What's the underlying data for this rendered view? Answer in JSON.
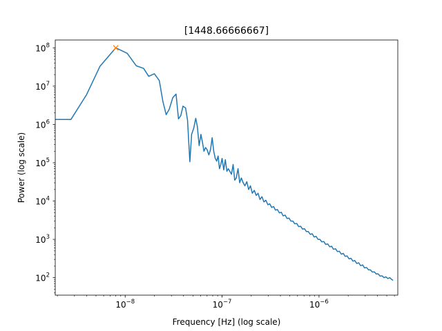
{
  "chart_data": {
    "type": "line",
    "title": "[1448.66666667]",
    "xlabel": "Frequency [Hz] (log scale)",
    "ylabel": "Power (log scale)",
    "xscale": "log",
    "yscale": "log",
    "xlim": [
      1.9e-09,
      6.5e-06
    ],
    "ylim": [
      35,
      160000000.0
    ],
    "x_tick_labels": [
      "10",
      "10",
      "10"
    ],
    "x_tick_exponents": [
      "−8",
      "−7",
      "−6"
    ],
    "x_ticks": [
      1e-08,
      1e-07,
      1e-06
    ],
    "y_tick_labels": [
      "10",
      "10",
      "10",
      "10",
      "10",
      "10",
      "10"
    ],
    "y_tick_exponents": [
      "2",
      "3",
      "4",
      "5",
      "6",
      "7",
      "8"
    ],
    "y_ticks": [
      100.0,
      1000.0,
      10000.0,
      100000.0,
      1000000.0,
      10000000.0,
      100000000.0
    ],
    "grid": false,
    "series": [
      {
        "color": "#1f77b4",
        "x": [
          1.9e-09,
          2.76e-09,
          4e-09,
          5.5e-09,
          8e-09,
          1.05e-08,
          1.3e-08,
          1.55e-08,
          1.75e-08,
          2e-08,
          2.25e-08,
          2.45e-08,
          2.65e-08,
          2.85e-08,
          3.1e-08,
          3.35e-08,
          3.55e-08,
          3.75e-08,
          3.95e-08,
          4.2e-08,
          4.4e-08,
          4.65e-08,
          4.85e-08,
          5.1e-08,
          5.35e-08,
          5.55e-08,
          5.8e-08,
          6.05e-08,
          6.3e-08,
          6.5e-08,
          6.75e-08,
          7e-08,
          7.3e-08,
          7.6e-08,
          7.9e-08,
          8.2e-08,
          8.5e-08,
          8.8e-08,
          9.1e-08,
          9.4e-08,
          9.7e-08,
          1e-07,
          1.04e-07,
          1.08e-07,
          1.12e-07,
          1.16e-07,
          1.2e-07,
          1.25e-07,
          1.3e-07,
          1.35e-07,
          1.4e-07,
          1.46e-07,
          1.52e-07,
          1.58e-07,
          1.65e-07,
          1.72e-07,
          1.8e-07,
          1.88e-07,
          1.96e-07,
          2.05e-07,
          2.15e-07,
          2.25e-07,
          2.35e-07,
          2.46e-07,
          2.58e-07,
          2.7e-07,
          2.83e-07,
          2.97e-07,
          3.1e-07,
          3.25e-07,
          3.4e-07,
          3.55e-07,
          3.72e-07,
          3.9e-07,
          4.08e-07,
          4.27e-07,
          4.47e-07,
          4.68e-07,
          4.9e-07,
          5.13e-07,
          5.37e-07,
          5.62e-07,
          5.89e-07,
          6.17e-07,
          6.46e-07,
          6.76e-07,
          7.08e-07,
          7.41e-07,
          7.76e-07,
          8.13e-07,
          8.51e-07,
          8.91e-07,
          9.33e-07,
          9.77e-07,
          1.02e-06,
          1.07e-06,
          1.12e-06,
          1.17e-06,
          1.23e-06,
          1.29e-06,
          1.35e-06,
          1.41e-06,
          1.48e-06,
          1.55e-06,
          1.62e-06,
          1.7e-06,
          1.78e-06,
          1.86e-06,
          1.95e-06,
          2.04e-06,
          2.14e-06,
          2.24e-06,
          2.34e-06,
          2.45e-06,
          2.57e-06,
          2.69e-06,
          2.82e-06,
          2.95e-06,
          3.09e-06,
          3.24e-06,
          3.39e-06,
          3.55e-06,
          3.72e-06,
          3.89e-06,
          4.07e-06,
          4.27e-06,
          4.47e-06,
          4.68e-06,
          4.9e-06,
          5.13e-06,
          5.37e-06,
          5.62e-06,
          5.8e-06
        ],
        "y": [
          1350000.0,
          1350000.0,
          6000000.0,
          33000000.0,
          100000000.0,
          72000000.0,
          34000000.0,
          29000000.0,
          18000000.0,
          21000000.0,
          14000000.0,
          4000000.0,
          1800000.0,
          2500000.0,
          5000000.0,
          6200000.0,
          1400000.0,
          1700000.0,
          3000000.0,
          2700000.0,
          1300000.0,
          106000.0,
          550000.0,
          800000.0,
          1450000.0,
          900000.0,
          280000.0,
          550000.0,
          320000.0,
          200000.0,
          250000.0,
          220000.0,
          160000.0,
          220000.0,
          450000.0,
          200000.0,
          130000.0,
          110000.0,
          150000.0,
          70000.0,
          90000.0,
          130000.0,
          65000.0,
          120000.0,
          60000.0,
          70000.0,
          60000.0,
          50000.0,
          90000.0,
          35000.0,
          40000.0,
          70000.0,
          30000.0,
          40000.0,
          30000.0,
          25000.0,
          32000.0,
          20000.0,
          25000.0,
          16000.0,
          19000.0,
          14000.0,
          16000.0,
          11000.0,
          13000.0,
          9500.0,
          10500.0,
          8000.0,
          8500.0,
          6800.0,
          7200.0,
          5800.0,
          6000.0,
          4900.0,
          5100.0,
          4100.0,
          4300.0,
          3500.0,
          3600.0,
          3000.0,
          3000.0,
          2550.0,
          2600.0,
          2150.0,
          2200.0,
          1850.0,
          1900.0,
          1600.0,
          1600.0,
          1350.0,
          1400.0,
          1150.0,
          1200.0,
          1000.0,
          1000.0,
          860.0,
          880.0,
          740.0,
          760.0,
          640.0,
          660.0,
          550.0,
          570.0,
          480.0,
          490.0,
          410.0,
          430.0,
          360.0,
          370.0,
          310.0,
          320.0,
          270.0,
          280.0,
          235.0,
          245.0,
          205.0,
          215.0,
          180.0,
          185.0,
          160.0,
          160.0,
          140.0,
          142.0,
          125.0,
          126.0,
          110.0,
          112.0,
          100.0,
          105.0,
          95.0,
          100.0,
          90.0,
          85.0
        ]
      }
    ],
    "marker": {
      "x": 8e-09,
      "y": 100000000.0,
      "symbol": "x",
      "color": "#ff7f0e"
    }
  }
}
